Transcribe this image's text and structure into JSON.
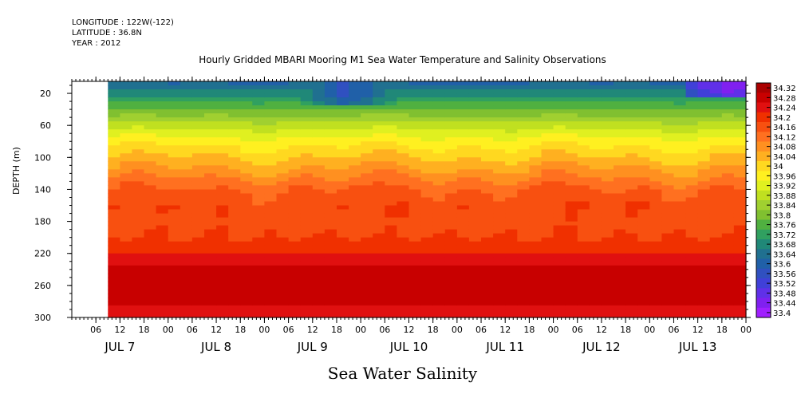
{
  "header": {
    "longitude": "LONGITUDE : 122W(-122)",
    "latitude": "LATITUDE : 36.8N",
    "year": "YEAR : 2012"
  },
  "chart_data": {
    "type": "heatmap",
    "title": "Hourly Gridded MBARI Mooring M1 Sea Water Temperature and Salinity Observations",
    "variable_label": "Sea Water Salinity",
    "ylabel": "DEPTH (m)",
    "y_ticks": [
      20,
      60,
      100,
      140,
      180,
      220,
      260,
      300
    ],
    "ylim": [
      300,
      5
    ],
    "y_inverted": true,
    "x_hour_ticks": [
      "06",
      "12",
      "18",
      "00",
      "06",
      "12",
      "18",
      "00",
      "06",
      "12",
      "18",
      "00",
      "06",
      "12",
      "18",
      "00",
      "06",
      "12",
      "18",
      "00",
      "06",
      "12",
      "18",
      "00",
      "06",
      "12",
      "18",
      "00"
    ],
    "x_day_labels": [
      "JUL 7",
      "JUL 8",
      "JUL 9",
      "JUL 10",
      "JUL 11",
      "JUL 12",
      "JUL 13"
    ],
    "x_start": "2012-07-07 00:00",
    "x_end": "2012-07-14 00:00",
    "data_start": "2012-07-07 09:00",
    "colorbar_levels": [
      "34.32",
      "34.28",
      "34.24",
      "34.2",
      "34.16",
      "34.12",
      "34.08",
      "34.04",
      "34",
      "33.96",
      "33.92",
      "33.88",
      "33.84",
      "33.8",
      "33.76",
      "33.72",
      "33.68",
      "33.64",
      "33.6",
      "33.56",
      "33.52",
      "33.48",
      "33.44",
      "33.4"
    ],
    "depth_profile_salinity": [
      {
        "depth": 10,
        "value": 33.62
      },
      {
        "depth": 20,
        "value": 33.68
      },
      {
        "depth": 40,
        "value": 33.78
      },
      {
        "depth": 60,
        "value": 33.88
      },
      {
        "depth": 80,
        "value": 33.96
      },
      {
        "depth": 100,
        "value": 34.02
      },
      {
        "depth": 120,
        "value": 34.08
      },
      {
        "depth": 140,
        "value": 34.14
      },
      {
        "depth": 160,
        "value": 34.17
      },
      {
        "depth": 180,
        "value": 34.16
      },
      {
        "depth": 200,
        "value": 34.18
      },
      {
        "depth": 220,
        "value": 34.22
      },
      {
        "depth": 240,
        "value": 34.27
      },
      {
        "depth": 260,
        "value": 34.3
      },
      {
        "depth": 280,
        "value": 34.27
      },
      {
        "depth": 300,
        "value": 34.24
      }
    ],
    "notes_low_salinity_patches": [
      {
        "day": "JUL 9",
        "depth": 20,
        "value": 33.56
      },
      {
        "day": "JUL 13",
        "depth": 10,
        "value": 33.42
      }
    ],
    "colors": {
      "34.32": "#aa0000",
      "34.28": "#c80000",
      "34.24": "#e01010",
      "34.2": "#f03000",
      "34.16": "#f85010",
      "34.12": "#ff7020",
      "34.08": "#ff9020",
      "34.04": "#ffb020",
      "34": "#ffd820",
      "33.96": "#fff020",
      "33.92": "#e0f020",
      "33.88": "#c0e020",
      "33.84": "#a0d030",
      "33.8": "#80c030",
      "33.76": "#50b040",
      "33.72": "#30a060",
      "33.68": "#208878",
      "33.64": "#207090",
      "33.6": "#2060a8",
      "33.56": "#3050c0",
      "33.52": "#4040d8",
      "33.48": "#6030e8",
      "33.44": "#8020f0",
      "33.4": "#a020ff"
    }
  }
}
